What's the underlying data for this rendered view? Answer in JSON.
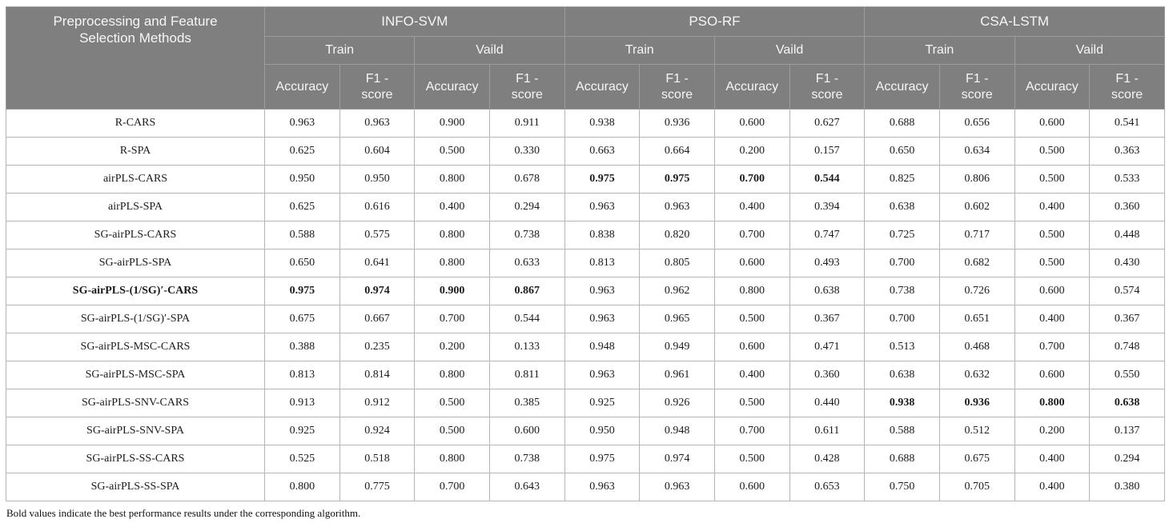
{
  "header": {
    "methods_title": "Preprocessing and Feature Selection Methods",
    "groups": [
      "INFO-SVM",
      "PSO-RF",
      "CSA-LSTM"
    ],
    "splits": [
      "Train",
      "Vaild"
    ],
    "metrics": [
      "Accuracy",
      "F1 - score"
    ]
  },
  "rows": [
    {
      "method": "R-CARS",
      "method_bold": false,
      "bold_cols": [],
      "values": [
        "0.963",
        "0.963",
        "0.900",
        "0.911",
        "0.938",
        "0.936",
        "0.600",
        "0.627",
        "0.688",
        "0.656",
        "0.600",
        "0.541"
      ]
    },
    {
      "method": "R-SPA",
      "method_bold": false,
      "bold_cols": [],
      "values": [
        "0.625",
        "0.604",
        "0.500",
        "0.330",
        "0.663",
        "0.664",
        "0.200",
        "0.157",
        "0.650",
        "0.634",
        "0.500",
        "0.363"
      ]
    },
    {
      "method": "airPLS-CARS",
      "method_bold": false,
      "bold_cols": [
        4,
        5,
        6,
        7
      ],
      "values": [
        "0.950",
        "0.950",
        "0.800",
        "0.678",
        "0.975",
        "0.975",
        "0.700",
        "0.544",
        "0.825",
        "0.806",
        "0.500",
        "0.533"
      ]
    },
    {
      "method": "airPLS-SPA",
      "method_bold": false,
      "bold_cols": [],
      "values": [
        "0.625",
        "0.616",
        "0.400",
        "0.294",
        "0.963",
        "0.963",
        "0.400",
        "0.394",
        "0.638",
        "0.602",
        "0.400",
        "0.360"
      ]
    },
    {
      "method": "SG-airPLS-CARS",
      "method_bold": false,
      "bold_cols": [],
      "values": [
        "0.588",
        "0.575",
        "0.800",
        "0.738",
        "0.838",
        "0.820",
        "0.700",
        "0.747",
        "0.725",
        "0.717",
        "0.500",
        "0.448"
      ]
    },
    {
      "method": "SG-airPLS-SPA",
      "method_bold": false,
      "bold_cols": [],
      "values": [
        "0.650",
        "0.641",
        "0.800",
        "0.633",
        "0.813",
        "0.805",
        "0.600",
        "0.493",
        "0.700",
        "0.682",
        "0.500",
        "0.430"
      ]
    },
    {
      "method": "SG-airPLS-(1/SG)′-CARS",
      "method_bold": true,
      "bold_cols": [
        0,
        1,
        2,
        3
      ],
      "values": [
        "0.975",
        "0.974",
        "0.900",
        "0.867",
        "0.963",
        "0.962",
        "0.800",
        "0.638",
        "0.738",
        "0.726",
        "0.600",
        "0.574"
      ]
    },
    {
      "method": "SG-airPLS-(1/SG)′-SPA",
      "method_bold": false,
      "bold_cols": [],
      "values": [
        "0.675",
        "0.667",
        "0.700",
        "0.544",
        "0.963",
        "0.965",
        "0.500",
        "0.367",
        "0.700",
        "0.651",
        "0.400",
        "0.367"
      ]
    },
    {
      "method": "SG-airPLS-MSC-CARS",
      "method_bold": false,
      "bold_cols": [],
      "values": [
        "0.388",
        "0.235",
        "0.200",
        "0.133",
        "0.948",
        "0.949",
        "0.600",
        "0.471",
        "0.513",
        "0.468",
        "0.700",
        "0.748"
      ]
    },
    {
      "method": "SG-airPLS-MSC-SPA",
      "method_bold": false,
      "bold_cols": [],
      "values": [
        "0.813",
        "0.814",
        "0.800",
        "0.811",
        "0.963",
        "0.961",
        "0.400",
        "0.360",
        "0.638",
        "0.632",
        "0.600",
        "0.550"
      ]
    },
    {
      "method": "SG-airPLS-SNV-CARS",
      "method_bold": false,
      "bold_cols": [
        8,
        9,
        10,
        11
      ],
      "values": [
        "0.913",
        "0.912",
        "0.500",
        "0.385",
        "0.925",
        "0.926",
        "0.500",
        "0.440",
        "0.938",
        "0.936",
        "0.800",
        "0.638"
      ]
    },
    {
      "method": "SG-airPLS-SNV-SPA",
      "method_bold": false,
      "bold_cols": [],
      "values": [
        "0.925",
        "0.924",
        "0.500",
        "0.600",
        "0.950",
        "0.948",
        "0.700",
        "0.611",
        "0.588",
        "0.512",
        "0.200",
        "0.137"
      ]
    },
    {
      "method": "SG-airPLS-SS-CARS",
      "method_bold": false,
      "bold_cols": [],
      "values": [
        "0.525",
        "0.518",
        "0.800",
        "0.738",
        "0.975",
        "0.974",
        "0.500",
        "0.428",
        "0.688",
        "0.675",
        "0.400",
        "0.294"
      ]
    },
    {
      "method": "SG-airPLS-SS-SPA",
      "method_bold": false,
      "bold_cols": [],
      "values": [
        "0.800",
        "0.775",
        "0.700",
        "0.643",
        "0.963",
        "0.963",
        "0.600",
        "0.653",
        "0.750",
        "0.705",
        "0.400",
        "0.380"
      ]
    }
  ],
  "footnote": "Bold values indicate the best performance results under the corresponding algorithm.",
  "colors": {
    "header_bg": "#7f7f7f",
    "header_line": "#9c9c9c",
    "header_text": "#f6f6f6",
    "body_border": "#b5b5b5",
    "body_text": "#1b1b1b"
  }
}
